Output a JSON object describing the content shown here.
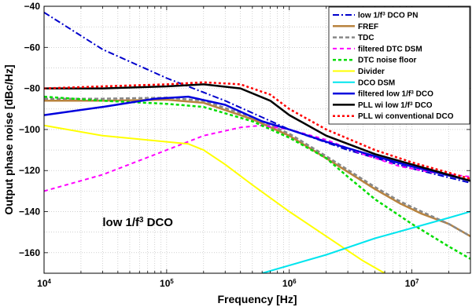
{
  "chart_data": {
    "type": "line",
    "title": "",
    "xlabel": "Frequency [Hz]",
    "ylabel": "Output phase noise [dBc/Hz]",
    "xscale": "log",
    "xlim": [
      10000,
      30000000
    ],
    "ylim": [
      -170,
      -40
    ],
    "xticks": [
      {
        "value": 10000,
        "base": "10",
        "exp": "4"
      },
      {
        "value": 100000,
        "base": "10",
        "exp": "5"
      },
      {
        "value": 1000000,
        "base": "10",
        "exp": "6"
      },
      {
        "value": 10000000,
        "base": "10",
        "exp": "7"
      }
    ],
    "yticks": [
      -40,
      -60,
      -80,
      -100,
      -120,
      -140,
      -160
    ],
    "grid": true,
    "legend_position": "top-right",
    "annotation": {
      "text": "low 1/f",
      "sup": "3",
      "suffix": " DCO",
      "x": 30000,
      "y": -147
    },
    "series": [
      {
        "name": "low 1/f",
        "name_sup": "3",
        "name_suffix": " DCO PN",
        "color": "#0000cc",
        "dash": "8,3,2,3",
        "width": 2,
        "points": [
          [
            10000,
            -43
          ],
          [
            30000,
            -61
          ],
          [
            100000,
            -75
          ],
          [
            300000,
            -86
          ],
          [
            1000000,
            -100
          ],
          [
            3000000,
            -110
          ],
          [
            10000000,
            -119
          ],
          [
            30000000,
            -126
          ]
        ]
      },
      {
        "name": "FREF",
        "color": "#b8833e",
        "dash": "",
        "width": 2.5,
        "points": [
          [
            10000,
            -86
          ],
          [
            30000,
            -86
          ],
          [
            100000,
            -85.5
          ],
          [
            200000,
            -87
          ],
          [
            500000,
            -95
          ],
          [
            1000000,
            -103
          ],
          [
            2000000,
            -114
          ],
          [
            5000000,
            -129
          ],
          [
            8000000,
            -136
          ],
          [
            12000000,
            -141
          ],
          [
            20000000,
            -146
          ],
          [
            30000000,
            -152
          ]
        ]
      },
      {
        "name": "TDC",
        "color": "#888888",
        "dash": "5,3",
        "width": 2.5,
        "points": [
          [
            10000,
            -85
          ],
          [
            30000,
            -85
          ],
          [
            100000,
            -84.5
          ],
          [
            200000,
            -86
          ],
          [
            500000,
            -94
          ],
          [
            1000000,
            -102
          ],
          [
            2000000,
            -113
          ],
          [
            5000000,
            -128
          ],
          [
            8000000,
            -135
          ],
          [
            12000000,
            -140
          ],
          [
            20000000,
            -146
          ],
          [
            30000000,
            -152
          ]
        ]
      },
      {
        "name": "filtered DTC DSM",
        "color": "#ff00ff",
        "dash": "5,4",
        "width": 2,
        "points": [
          [
            10000,
            -130
          ],
          [
            30000,
            -122
          ],
          [
            100000,
            -110
          ],
          [
            200000,
            -103
          ],
          [
            400000,
            -99
          ],
          [
            600000,
            -98
          ],
          [
            1000000,
            -100
          ],
          [
            2000000,
            -105
          ],
          [
            4000000,
            -112
          ],
          [
            8000000,
            -118
          ],
          [
            15000000,
            -121
          ],
          [
            30000000,
            -123
          ]
        ]
      },
      {
        "name": "DTC noise floor",
        "color": "#00dd00",
        "dash": "4,3",
        "width": 2.5,
        "points": [
          [
            10000,
            -84
          ],
          [
            30000,
            -86
          ],
          [
            100000,
            -87.5
          ],
          [
            200000,
            -89
          ],
          [
            500000,
            -96
          ],
          [
            1000000,
            -104
          ],
          [
            2000000,
            -114
          ],
          [
            3000000,
            -123
          ],
          [
            5000000,
            -134
          ],
          [
            10000000,
            -146
          ],
          [
            20000000,
            -157
          ],
          [
            30000000,
            -163
          ]
        ]
      },
      {
        "name": "Divider",
        "color": "#ffff00",
        "dash": "",
        "width": 2,
        "points": [
          [
            10000,
            -98
          ],
          [
            30000,
            -103
          ],
          [
            100000,
            -106
          ],
          [
            150000,
            -107
          ],
          [
            200000,
            -110
          ],
          [
            300000,
            -117
          ],
          [
            500000,
            -127
          ],
          [
            1000000,
            -140
          ],
          [
            2000000,
            -152
          ],
          [
            4000000,
            -164
          ],
          [
            6000000,
            -170
          ]
        ]
      },
      {
        "name": "DCO DSM",
        "color": "#00e5ee",
        "dash": "",
        "width": 2,
        "points": [
          [
            600000,
            -170
          ],
          [
            2000000,
            -161
          ],
          [
            5000000,
            -153
          ],
          [
            10000000,
            -148
          ],
          [
            20000000,
            -143
          ],
          [
            30000000,
            -140
          ]
        ]
      },
      {
        "name": "filtered low 1/f",
        "name_sup": "3",
        "name_suffix": " DCO",
        "color": "#0000dd",
        "dash": "",
        "width": 2.5,
        "points": [
          [
            10000,
            -93
          ],
          [
            30000,
            -89
          ],
          [
            80000,
            -85
          ],
          [
            150000,
            -84
          ],
          [
            300000,
            -88
          ],
          [
            600000,
            -96
          ],
          [
            1000000,
            -100
          ],
          [
            2000000,
            -106
          ],
          [
            5000000,
            -113
          ],
          [
            10000000,
            -118
          ],
          [
            30000000,
            -125
          ]
        ]
      },
      {
        "name": "PLL wi low 1/f",
        "name_sup": "3",
        "name_suffix": " DCO",
        "color": "#000000",
        "dash": "",
        "width": 2.5,
        "points": [
          [
            10000,
            -80
          ],
          [
            30000,
            -80
          ],
          [
            100000,
            -79
          ],
          [
            200000,
            -78
          ],
          [
            400000,
            -80
          ],
          [
            700000,
            -86
          ],
          [
            1000000,
            -93
          ],
          [
            2000000,
            -103
          ],
          [
            5000000,
            -112
          ],
          [
            10000000,
            -117
          ],
          [
            30000000,
            -125
          ]
        ]
      },
      {
        "name": "PLL wi conventional DCO",
        "color": "#ff0000",
        "dash": "3,3",
        "width": 2.5,
        "points": [
          [
            10000,
            -80
          ],
          [
            30000,
            -79
          ],
          [
            100000,
            -78
          ],
          [
            200000,
            -77
          ],
          [
            400000,
            -78
          ],
          [
            700000,
            -83
          ],
          [
            1000000,
            -90
          ],
          [
            2000000,
            -100
          ],
          [
            5000000,
            -110
          ],
          [
            10000000,
            -116
          ],
          [
            30000000,
            -124
          ]
        ]
      }
    ]
  }
}
